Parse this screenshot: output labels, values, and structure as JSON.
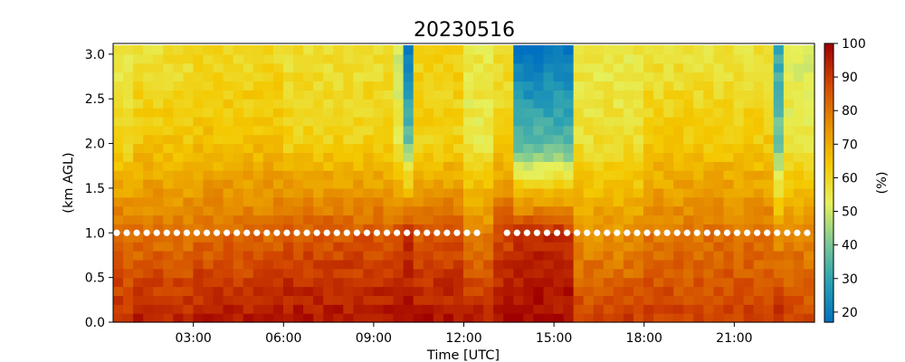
{
  "chart_data": {
    "type": "heatmap",
    "title": "20230516",
    "xlabel": "Time [UTC]",
    "ylabel": "(km AGL)",
    "colorbar_label": "(%)",
    "xlim_hours": [
      0.33,
      23.67
    ],
    "ylim": [
      0.0,
      3.12
    ],
    "x_ticks": [
      {
        "value": 3,
        "label": "03:00"
      },
      {
        "value": 6,
        "label": "06:00"
      },
      {
        "value": 9,
        "label": "09:00"
      },
      {
        "value": 12,
        "label": "12:00"
      },
      {
        "value": 15,
        "label": "15:00"
      },
      {
        "value": 18,
        "label": "18:00"
      },
      {
        "value": 21,
        "label": "21:00"
      }
    ],
    "y_ticks": [
      {
        "value": 0.0,
        "label": "0.0"
      },
      {
        "value": 0.5,
        "label": "0.5"
      },
      {
        "value": 1.0,
        "label": "1.0"
      },
      {
        "value": 1.5,
        "label": "1.5"
      },
      {
        "value": 2.0,
        "label": "2.0"
      },
      {
        "value": 2.5,
        "label": "2.5"
      },
      {
        "value": 3.0,
        "label": "3.0"
      }
    ],
    "colorbar": {
      "vmin": 17,
      "vmax": 100,
      "ticks": [
        {
          "value": 20,
          "label": "20"
        },
        {
          "value": 30,
          "label": "30"
        },
        {
          "value": 40,
          "label": "40"
        },
        {
          "value": 50,
          "label": "50"
        },
        {
          "value": 60,
          "label": "60"
        },
        {
          "value": 70,
          "label": "70"
        },
        {
          "value": 80,
          "label": "80"
        },
        {
          "value": 90,
          "label": "90"
        },
        {
          "value": 100,
          "label": "100"
        }
      ],
      "colormap": [
        "#0070c0",
        "#28a0b4",
        "#7cc896",
        "#e6f05a",
        "#f4c800",
        "#e68c00",
        "#d24600",
        "#a00000"
      ]
    },
    "time_step_hours": 0.333,
    "height_levels_km": [
      0.05,
      0.15,
      0.25,
      0.35,
      0.45,
      0.55,
      0.65,
      0.75,
      0.85,
      0.95,
      1.05,
      1.15,
      1.25,
      1.35,
      1.45,
      1.55,
      1.65,
      1.75,
      1.85,
      1.95,
      2.05,
      2.15,
      2.25,
      2.35,
      2.45,
      2.55,
      2.65,
      2.75,
      2.85,
      2.95,
      3.05
    ],
    "profile_regimes": [
      {
        "t_start": 0.33,
        "t_end": 1.0,
        "rh_surface": 92,
        "rh_1km": 82,
        "rh_2km": 60,
        "rh_3km": 55
      },
      {
        "t_start": 1.0,
        "t_end": 3.0,
        "rh_surface": 95,
        "rh_1km": 80,
        "rh_2km": 65,
        "rh_3km": 58
      },
      {
        "t_start": 3.0,
        "t_end": 6.0,
        "rh_surface": 96,
        "rh_1km": 82,
        "rh_2km": 66,
        "rh_3km": 60
      },
      {
        "t_start": 6.0,
        "t_end": 9.5,
        "rh_surface": 97,
        "rh_1km": 85,
        "rh_2km": 62,
        "rh_3km": 58
      },
      {
        "t_start": 9.5,
        "t_end": 10.0,
        "rh_surface": 96,
        "rh_1km": 88,
        "rh_2km": 55,
        "rh_3km": 50
      },
      {
        "t_start": 10.0,
        "t_end": 10.4,
        "rh_surface": 97,
        "rh_1km": 92,
        "rh_2km": 40,
        "rh_3km": 22
      },
      {
        "t_start": 10.4,
        "t_end": 12.0,
        "rh_surface": 97,
        "rh_1km": 85,
        "rh_2km": 62,
        "rh_3km": 62
      },
      {
        "t_start": 12.0,
        "t_end": 13.0,
        "rh_surface": 96,
        "rh_1km": 78,
        "rh_2km": 55,
        "rh_3km": 55
      },
      {
        "t_start": 13.0,
        "t_end": 13.8,
        "rh_surface": 98,
        "rh_1km": 88,
        "rh_2km": 62,
        "rh_3km": 58
      },
      {
        "t_start": 13.8,
        "t_end": 15.7,
        "rh_surface": 98,
        "rh_1km": 92,
        "rh_2km": 36,
        "rh_3km": 19
      },
      {
        "t_start": 15.7,
        "t_end": 18.0,
        "rh_surface": 90,
        "rh_1km": 75,
        "rh_2km": 58,
        "rh_3km": 55
      },
      {
        "t_start": 18.0,
        "t_end": 22.2,
        "rh_surface": 90,
        "rh_1km": 80,
        "rh_2km": 64,
        "rh_3km": 57
      },
      {
        "t_start": 22.2,
        "t_end": 22.6,
        "rh_surface": 95,
        "rh_1km": 75,
        "rh_2km": 40,
        "rh_3km": 32
      },
      {
        "t_start": 22.6,
        "t_end": 23.67,
        "rh_surface": 88,
        "rh_1km": 78,
        "rh_2km": 55,
        "rh_3km": 52
      }
    ],
    "marker_series": {
      "height_km": 1.0,
      "marker": "white-dots",
      "t_start": 0.45,
      "t_end": 23.6,
      "step_hours": 0.333,
      "gap": [
        12.7,
        13.3
      ]
    }
  }
}
